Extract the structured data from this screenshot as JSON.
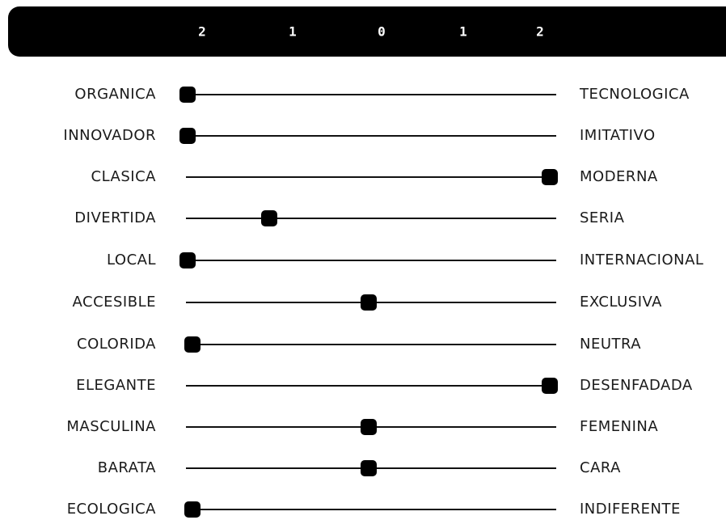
{
  "accent_color": "#000000",
  "scale": {
    "ticks": [
      "2",
      "1",
      "0",
      "1",
      "2"
    ],
    "tick_values": [
      -2,
      -1,
      0,
      1,
      2
    ]
  },
  "scales": [
    {
      "left": "ORGANICA",
      "right": "TECNOLOGICA",
      "value": -2.0
    },
    {
      "left": "INNOVADOR",
      "right": "IMITATIVO",
      "value": -2.0
    },
    {
      "left": "CLASICA",
      "right": "MODERNA",
      "value": 2.0
    },
    {
      "left": "DIVERTIDA",
      "right": "SERIA",
      "value": -1.1
    },
    {
      "left": "LOCAL",
      "right": "INTERNACIONAL",
      "value": -2.0
    },
    {
      "left": "ACCESIBLE",
      "right": "EXCLUSIVA",
      "value": 0.0
    },
    {
      "left": "COLORIDA",
      "right": "NEUTRA",
      "value": -1.95
    },
    {
      "left": "ELEGANTE",
      "right": "DESENFADADA",
      "value": 2.0
    },
    {
      "left": "MASCULINA",
      "right": "FEMENINA",
      "value": 0.0
    },
    {
      "left": "BARATA",
      "right": "CARA",
      "value": 0.0
    },
    {
      "left": "ECOLOGICA",
      "right": "INDIFERENTE",
      "value": -1.95
    }
  ]
}
